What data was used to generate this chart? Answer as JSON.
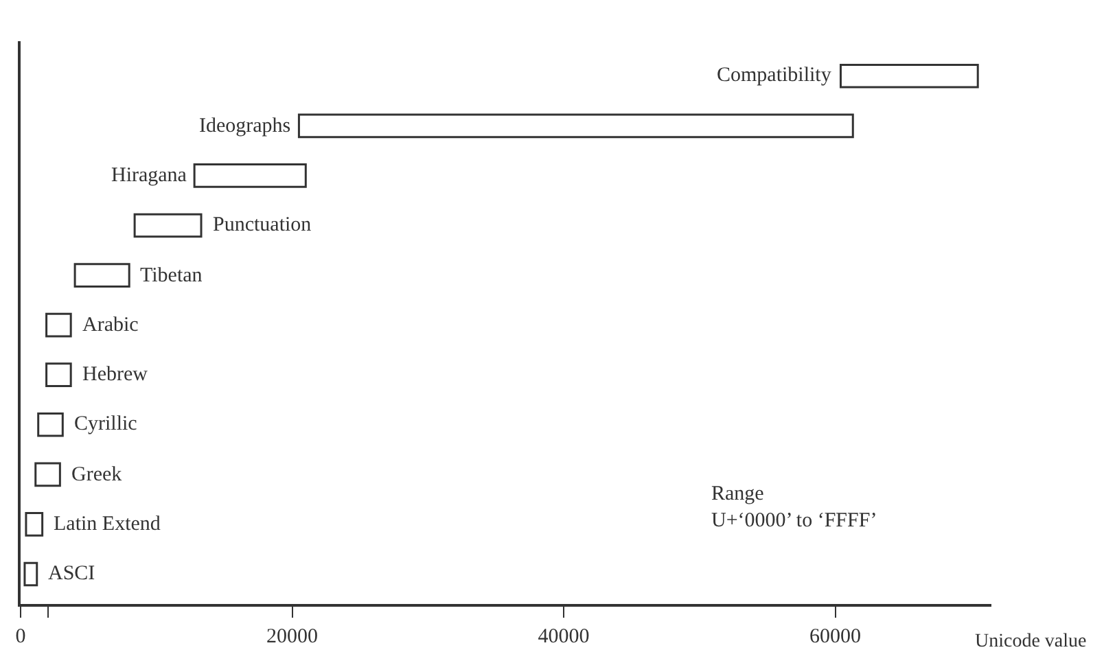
{
  "chart_data": {
    "type": "bar",
    "orientation": "horizontal",
    "categories": [
      "Compatibility",
      "Ideographs",
      "Hiragana",
      "Punctuation",
      "Tibetan",
      "Arabic",
      "Hebrew",
      "Cyrillic",
      "Greek",
      "Latin Extend",
      "ASCI"
    ],
    "base": [
      60400,
      20500,
      12800,
      8400,
      4000,
      1900,
      1900,
      1300,
      1100,
      400,
      300
    ],
    "values": [
      10100,
      40800,
      8200,
      4900,
      4000,
      1800,
      1800,
      1800,
      1800,
      1200,
      900
    ],
    "color": "#ffffff",
    "xlabel": "Unicode value",
    "xlim": [
      0,
      71500
    ],
    "xticks": [
      0,
      {
        "value": 2000,
        "label": null
      },
      20000,
      40000,
      60000
    ],
    "tick_labels": "x",
    "annotations": [
      "Range\nU+‘0000’ to ‘FFFF’"
    ]
  }
}
